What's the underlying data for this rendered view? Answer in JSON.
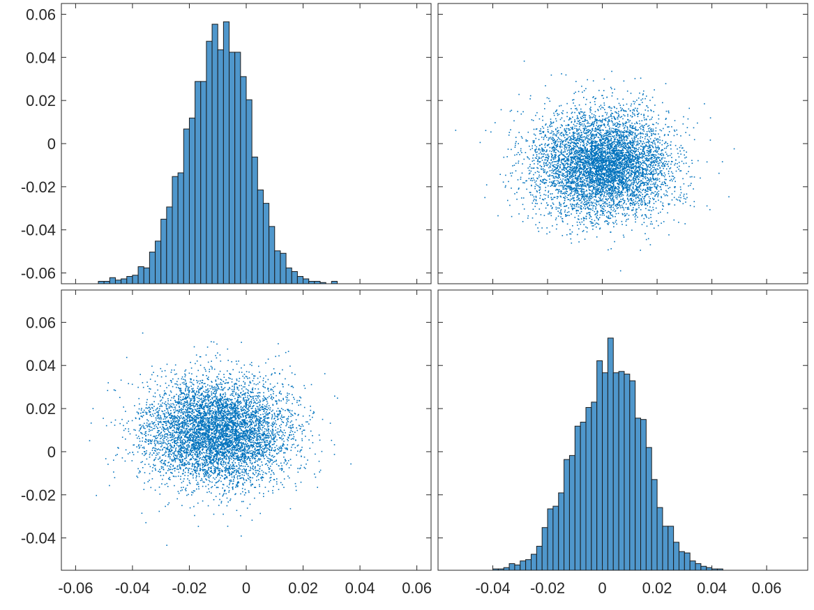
{
  "chart_data": {
    "type": "scatter-matrix",
    "colors": {
      "bar_fill": "#4f97cc",
      "bar_edge": "#1a1a1a",
      "point": "#0072bd",
      "axes": "#262626"
    },
    "panels": [
      {
        "id": "top-left",
        "type": "bar",
        "description_variable": "x1",
        "bin_width": 0.002,
        "bin_start": -0.052,
        "counts": [
          2,
          2,
          5,
          3,
          4,
          6,
          7,
          14,
          13,
          26,
          35,
          53,
          63,
          88,
          91,
          127,
          136,
          166,
          166,
          199,
          213,
          192,
          215,
          190,
          190,
          170,
          151,
          104,
          77,
          66,
          47,
          27,
          25,
          13,
          10,
          6,
          4,
          2,
          2,
          1,
          0,
          2
        ],
        "hist_ylim": [
          0,
          230
        ],
        "xlim": [
          -0.065,
          0.065
        ],
        "xticks": [
          -0.06,
          -0.04,
          -0.02,
          0,
          0.02,
          0.04,
          0.06
        ],
        "ylim": [
          -0.065,
          0.065
        ],
        "yticks": [
          -0.06,
          -0.04,
          -0.02,
          0,
          0.02,
          0.04,
          0.06
        ],
        "ytick_labels": [
          "-0.06",
          "-0.04",
          "-0.02",
          "0",
          "0.02",
          "0.04",
          "0.06"
        ]
      },
      {
        "id": "top-right",
        "type": "scatter",
        "x_mean": 0.0,
        "x_std": 0.0125,
        "y_mean": -0.01,
        "y_std": 0.0125,
        "n": 6000,
        "seed": 17,
        "xlim": [
          -0.06,
          0.075
        ],
        "xticks": [
          -0.04,
          -0.02,
          0,
          0.02,
          0.04,
          0.06
        ],
        "ylim": [
          -0.065,
          0.065
        ],
        "yticks": [
          -0.06,
          -0.04,
          -0.02,
          0,
          0.02,
          0.04,
          0.06
        ]
      },
      {
        "id": "bottom-left",
        "type": "scatter",
        "x_mean": -0.01,
        "x_std": 0.0125,
        "y_mean": 0.009,
        "y_std": 0.0125,
        "n": 6000,
        "seed": 41,
        "xlim": [
          -0.065,
          0.065
        ],
        "xticks": [
          -0.06,
          -0.04,
          -0.02,
          0,
          0.02,
          0.04,
          0.06
        ],
        "xtick_labels": [
          "-0.06",
          "-0.04",
          "-0.02",
          "0",
          "0.02",
          "0.04",
          "0.06"
        ],
        "ylim": [
          -0.055,
          0.075
        ],
        "yticks": [
          -0.04,
          -0.02,
          0,
          0.02,
          0.04,
          0.06
        ],
        "ytick_labels": [
          "-0.04",
          "-0.02",
          "0",
          "0.02",
          "0.04",
          "0.06"
        ]
      },
      {
        "id": "bottom-right",
        "type": "bar",
        "description_variable": "x2",
        "bin_width": 0.002,
        "bin_start": -0.04,
        "counts": [
          1,
          1,
          2,
          5,
          4,
          7,
          8,
          12,
          18,
          32,
          46,
          48,
          58,
          83,
          86,
          108,
          111,
          122,
          126,
          157,
          148,
          174,
          148,
          149,
          147,
          142,
          114,
          113,
          92,
          68,
          47,
          33,
          33,
          21,
          14,
          13,
          7,
          5,
          3,
          2,
          1,
          1
        ],
        "hist_ylim": [
          0,
          210
        ],
        "xlim": [
          -0.06,
          0.075
        ],
        "xticks": [
          -0.04,
          -0.02,
          0,
          0.02,
          0.04,
          0.06
        ],
        "xtick_labels": [
          "-0.04",
          "-0.02",
          "0",
          "0.02",
          "0.04",
          "0.06"
        ],
        "ylim": [
          -0.055,
          0.075
        ],
        "yticks": [
          -0.04,
          -0.02,
          0,
          0.02,
          0.04,
          0.06
        ]
      }
    ]
  }
}
